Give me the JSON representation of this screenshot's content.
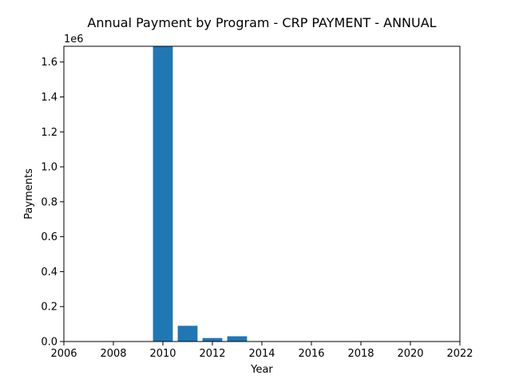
{
  "chart_data": {
    "type": "bar",
    "title": "Annual Payment by Program - CRP PAYMENT - ANNUAL",
    "xlabel": "Year",
    "ylabel": "Payments",
    "y_offset_label": "1e6",
    "xlim": [
      2006,
      2022
    ],
    "ylim": [
      0,
      1690000
    ],
    "x_ticks": [
      2006,
      2008,
      2010,
      2012,
      2014,
      2016,
      2018,
      2020,
      2022
    ],
    "y_ticks": [
      0,
      200000,
      400000,
      600000,
      800000,
      1000000,
      1200000,
      1400000,
      1600000
    ],
    "y_tick_labels": [
      "0.0",
      "0.2",
      "0.4",
      "0.6",
      "0.8",
      "1.0",
      "1.2",
      "1.4",
      "1.6"
    ],
    "bar_width_years": 0.8,
    "x": [
      2010,
      2011,
      2012,
      2013
    ],
    "values": [
      1690000,
      90000,
      20000,
      30000
    ],
    "grid": false,
    "legend": "none",
    "bar_color": "#1f77b4"
  }
}
